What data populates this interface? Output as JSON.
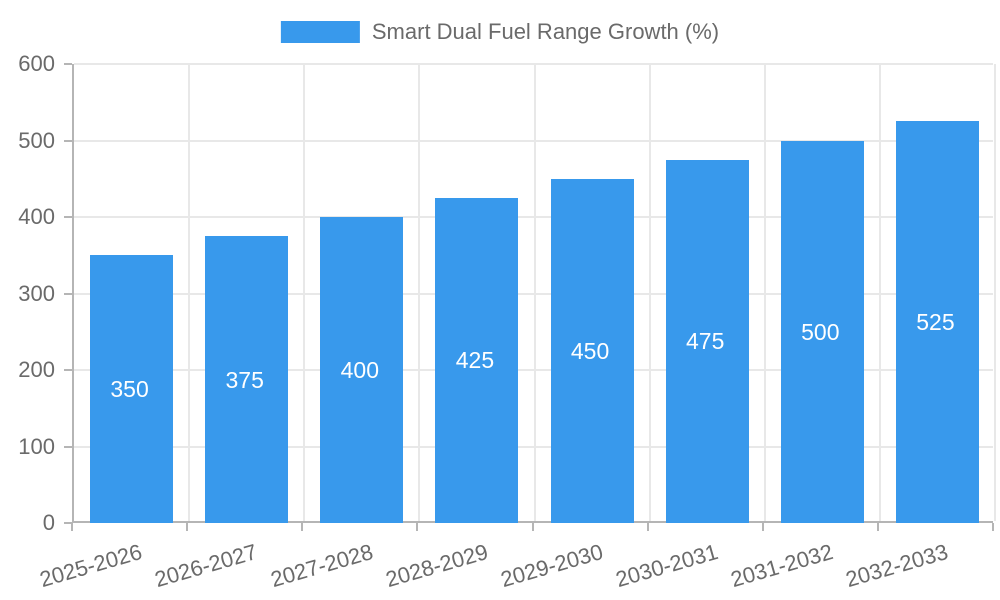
{
  "chart_data": {
    "type": "bar",
    "title": "Smart Dual Fuel Range Growth (%)",
    "legend": [
      {
        "label": "Smart Dual Fuel Range Growth (%)",
        "color": "#3899ec"
      }
    ],
    "legend_position": "top",
    "categories": [
      "2025-2026",
      "2026-2027",
      "2027-2028",
      "2028-2029",
      "2029-2030",
      "2030-2031",
      "2031-2032",
      "2032-2033"
    ],
    "values": [
      350,
      375,
      400,
      425,
      450,
      475,
      500,
      525
    ],
    "bar_labels": [
      "350",
      "375",
      "400",
      "425",
      "450",
      "475",
      "500",
      "525"
    ],
    "xlabel": "",
    "ylabel": "",
    "ylim": [
      0,
      600
    ],
    "yticks": [
      0,
      100,
      200,
      300,
      400,
      500,
      600
    ],
    "grid": true,
    "colors": {
      "bar": "#3899ec",
      "bar_label_text": "#ffffff",
      "axis_line": "#b5b5b5",
      "grid_line": "#e8e8e8",
      "tick_label": "#6a6a6a",
      "legend_text": "#6a6a6a",
      "background": "#ffffff"
    }
  }
}
